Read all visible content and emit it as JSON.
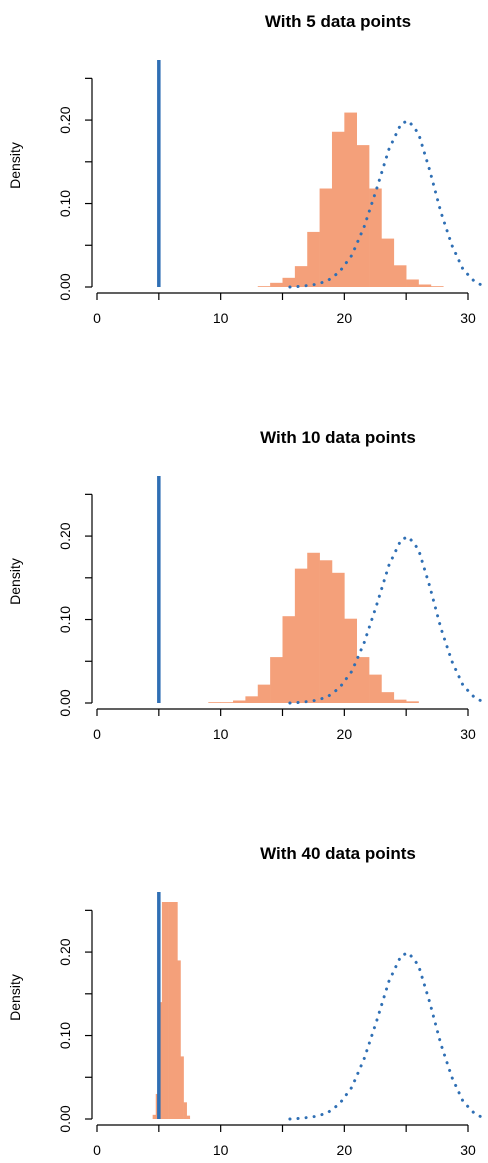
{
  "chart_data": [
    {
      "type": "bar",
      "title": "With 5 data points",
      "xlabel": "",
      "ylabel": "Density",
      "xlim": [
        0,
        30
      ],
      "ylim": [
        0,
        0.26
      ],
      "xticks": [
        "0",
        "10",
        "20",
        "30"
      ],
      "yticks": [
        "0.00",
        "0.10",
        "0.20"
      ],
      "grid": false,
      "vertical_line": {
        "x": 5,
        "color": "#2f6fb4"
      },
      "histogram": {
        "color": "#f4a07a",
        "bin_width": 1,
        "bins": [
          {
            "x0": 13,
            "x1": 14,
            "density": 0.001
          },
          {
            "x0": 14,
            "x1": 15,
            "density": 0.005
          },
          {
            "x0": 15,
            "x1": 16,
            "density": 0.011
          },
          {
            "x0": 16,
            "x1": 17,
            "density": 0.025
          },
          {
            "x0": 17,
            "x1": 18,
            "density": 0.066
          },
          {
            "x0": 18,
            "x1": 19,
            "density": 0.118
          },
          {
            "x0": 19,
            "x1": 20,
            "density": 0.186
          },
          {
            "x0": 20,
            "x1": 21,
            "density": 0.209
          },
          {
            "x0": 21,
            "x1": 22,
            "density": 0.17
          },
          {
            "x0": 22,
            "x1": 23,
            "density": 0.118
          },
          {
            "x0": 23,
            "x1": 24,
            "density": 0.058
          },
          {
            "x0": 24,
            "x1": 25,
            "density": 0.026
          },
          {
            "x0": 25,
            "x1": 26,
            "density": 0.009
          },
          {
            "x0": 26,
            "x1": 27,
            "density": 0.003
          },
          {
            "x0": 27,
            "x1": 28,
            "density": 0.001
          }
        ]
      },
      "density_curve": {
        "style": "dotted",
        "color": "#2f6fb4",
        "points": [
          [
            15.6,
            0.0
          ],
          [
            16.6,
            0.001
          ],
          [
            17.6,
            0.003
          ],
          [
            18.6,
            0.007
          ],
          [
            19.6,
            0.018
          ],
          [
            20.6,
            0.038
          ],
          [
            21.6,
            0.072
          ],
          [
            22.6,
            0.117
          ],
          [
            23.6,
            0.165
          ],
          [
            24.6,
            0.196
          ],
          [
            25.2,
            0.199
          ],
          [
            26.0,
            0.184
          ],
          [
            26.9,
            0.14
          ],
          [
            27.8,
            0.09
          ],
          [
            28.7,
            0.05
          ],
          [
            29.6,
            0.021
          ],
          [
            30.5,
            0.007
          ],
          [
            31.0,
            0.003
          ]
        ]
      }
    },
    {
      "type": "bar",
      "title": "With 10 data points",
      "xlabel": "",
      "ylabel": "Density",
      "xlim": [
        0,
        30
      ],
      "ylim": [
        0,
        0.26
      ],
      "xticks": [
        "0",
        "10",
        "20",
        "30"
      ],
      "yticks": [
        "0.00",
        "0.10",
        "0.20"
      ],
      "grid": false,
      "vertical_line": {
        "x": 5,
        "color": "#2f6fb4"
      },
      "histogram": {
        "color": "#f4a07a",
        "bin_width": 1,
        "bins": [
          {
            "x0": 9,
            "x1": 10,
            "density": 0.001
          },
          {
            "x0": 10,
            "x1": 11,
            "density": 0.001
          },
          {
            "x0": 11,
            "x1": 12,
            "density": 0.003
          },
          {
            "x0": 12,
            "x1": 13,
            "density": 0.008
          },
          {
            "x0": 13,
            "x1": 14,
            "density": 0.022
          },
          {
            "x0": 14,
            "x1": 15,
            "density": 0.055
          },
          {
            "x0": 15,
            "x1": 16,
            "density": 0.104
          },
          {
            "x0": 16,
            "x1": 17,
            "density": 0.161
          },
          {
            "x0": 17,
            "x1": 18,
            "density": 0.18
          },
          {
            "x0": 18,
            "x1": 19,
            "density": 0.171
          },
          {
            "x0": 19,
            "x1": 20,
            "density": 0.156
          },
          {
            "x0": 20,
            "x1": 21,
            "density": 0.101
          },
          {
            "x0": 21,
            "x1": 22,
            "density": 0.055
          },
          {
            "x0": 22,
            "x1": 23,
            "density": 0.034
          },
          {
            "x0": 23,
            "x1": 24,
            "density": 0.013
          },
          {
            "x0": 24,
            "x1": 25,
            "density": 0.004
          },
          {
            "x0": 25,
            "x1": 26,
            "density": 0.002
          }
        ]
      },
      "density_curve": {
        "style": "dotted",
        "color": "#2f6fb4",
        "points": [
          [
            15.6,
            0.0
          ],
          [
            16.6,
            0.001
          ],
          [
            17.6,
            0.003
          ],
          [
            18.6,
            0.007
          ],
          [
            19.6,
            0.018
          ],
          [
            20.6,
            0.038
          ],
          [
            21.6,
            0.072
          ],
          [
            22.6,
            0.117
          ],
          [
            23.6,
            0.165
          ],
          [
            24.6,
            0.196
          ],
          [
            25.2,
            0.199
          ],
          [
            26.0,
            0.184
          ],
          [
            26.9,
            0.14
          ],
          [
            27.8,
            0.09
          ],
          [
            28.7,
            0.05
          ],
          [
            29.6,
            0.021
          ],
          [
            30.5,
            0.007
          ],
          [
            31.0,
            0.003
          ]
        ]
      }
    },
    {
      "type": "bar",
      "title": "With 40 data points",
      "xlabel": "",
      "ylabel": "Density",
      "xlim": [
        0,
        30
      ],
      "ylim": [
        0,
        0.26
      ],
      "xticks": [
        "0",
        "10",
        "20",
        "30"
      ],
      "yticks": [
        "0.00",
        "0.10",
        "0.20"
      ],
      "grid": false,
      "vertical_line": {
        "x": 5,
        "color": "#2f6fb4"
      },
      "histogram": {
        "color": "#f4a07a",
        "bin_width": 0.25,
        "bins": [
          {
            "x0": 4.5,
            "x1": 4.75,
            "density": 0.005
          },
          {
            "x0": 4.75,
            "x1": 5.0,
            "density": 0.03
          },
          {
            "x0": 5.0,
            "x1": 5.25,
            "density": 0.14
          },
          {
            "x0": 5.25,
            "x1": 5.5,
            "density": 0.26
          },
          {
            "x0": 5.5,
            "x1": 5.75,
            "density": 0.26
          },
          {
            "x0": 5.75,
            "x1": 6.0,
            "density": 0.26
          },
          {
            "x0": 6.0,
            "x1": 6.25,
            "density": 0.26
          },
          {
            "x0": 6.25,
            "x1": 6.5,
            "density": 0.26
          },
          {
            "x0": 6.5,
            "x1": 6.75,
            "density": 0.19
          },
          {
            "x0": 6.75,
            "x1": 7.0,
            "density": 0.075
          },
          {
            "x0": 7.0,
            "x1": 7.25,
            "density": 0.02
          },
          {
            "x0": 7.25,
            "x1": 7.5,
            "density": 0.004
          }
        ]
      },
      "density_curve": {
        "style": "dotted",
        "color": "#2f6fb4",
        "points": [
          [
            15.6,
            0.0
          ],
          [
            16.6,
            0.001
          ],
          [
            17.6,
            0.003
          ],
          [
            18.6,
            0.007
          ],
          [
            19.6,
            0.018
          ],
          [
            20.6,
            0.038
          ],
          [
            21.6,
            0.072
          ],
          [
            22.6,
            0.117
          ],
          [
            23.6,
            0.165
          ],
          [
            24.6,
            0.196
          ],
          [
            25.2,
            0.199
          ],
          [
            26.0,
            0.184
          ],
          [
            26.9,
            0.14
          ],
          [
            27.8,
            0.09
          ],
          [
            28.7,
            0.05
          ],
          [
            29.6,
            0.021
          ],
          [
            30.5,
            0.007
          ],
          [
            31.0,
            0.003
          ]
        ]
      }
    }
  ]
}
